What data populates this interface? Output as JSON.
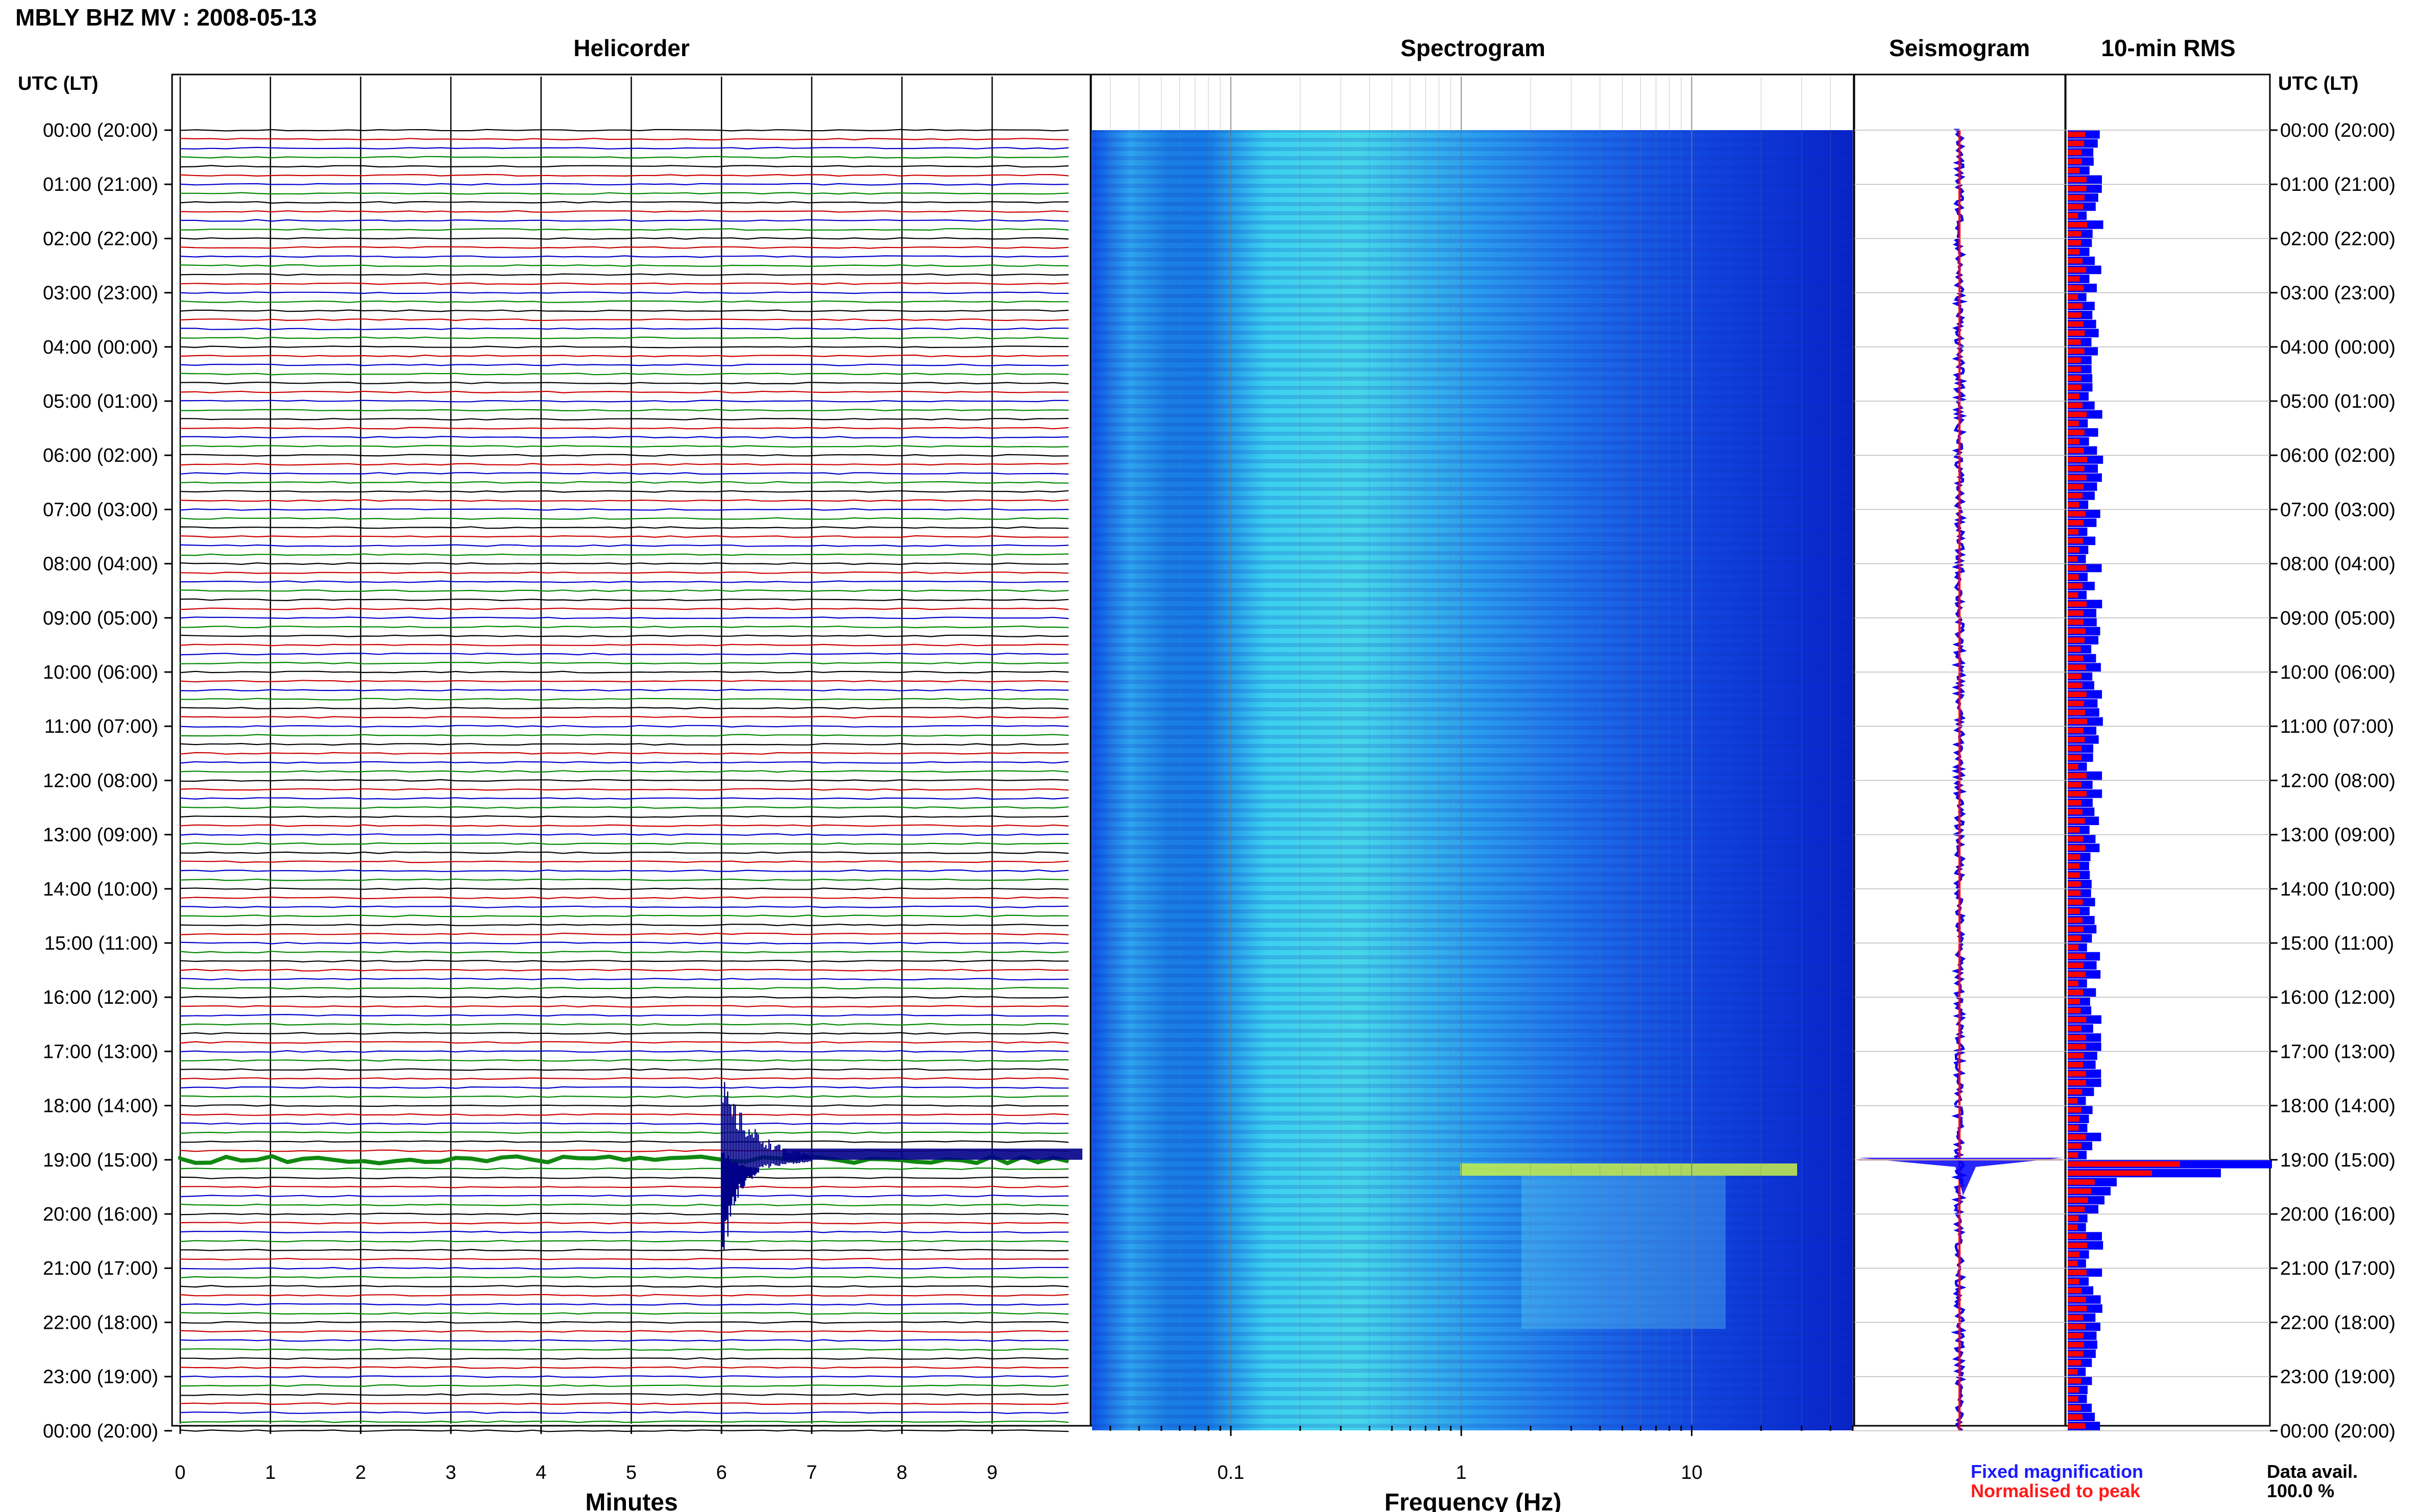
{
  "station_title": "MBLY BHZ MV : 2008-05-13",
  "panels": {
    "helicorder": "Helicorder",
    "spectrogram": "Spectrogram",
    "seismogram": "Seismogram",
    "rms": "10-min RMS"
  },
  "axis_header_left": "UTC (LT)",
  "axis_header_right": "UTC (LT)",
  "time_labels": [
    "00:00 (20:00)",
    "01:00 (21:00)",
    "02:00 (22:00)",
    "03:00 (23:00)",
    "04:00 (00:00)",
    "05:00 (01:00)",
    "06:00 (02:00)",
    "07:00 (03:00)",
    "08:00 (04:00)",
    "09:00 (05:00)",
    "10:00 (06:00)",
    "11:00 (07:00)",
    "12:00 (08:00)",
    "13:00 (09:00)",
    "14:00 (10:00)",
    "15:00 (11:00)",
    "16:00 (12:00)",
    "17:00 (13:00)",
    "18:00 (14:00)",
    "19:00 (15:00)",
    "20:00 (16:00)",
    "21:00 (17:00)",
    "22:00 (18:00)",
    "23:00 (19:00)",
    "00:00 (20:00)"
  ],
  "minutes_ticks": [
    "0",
    "1",
    "2",
    "3",
    "4",
    "5",
    "6",
    "7",
    "8",
    "9"
  ],
  "minutes_label": "Minutes",
  "freq_ticks": [
    "0.1",
    "1",
    "10"
  ],
  "freq_label": "Frequency (Hz)",
  "legend": {
    "fixed": "Fixed magnification",
    "normalised": "Normalised to peak",
    "fixed_color": "#1a1aff",
    "normalised_color": "#ff1a1a"
  },
  "data_avail_label": "Data avail.",
  "data_avail_value": "100.0 %",
  "colors": {
    "trace_cycle": [
      "#000000",
      "#cc0000",
      "#0000cc",
      "#008800"
    ],
    "event_trace": "#000088",
    "spectrogram_low": "#0a2bd8",
    "spectrogram_mid": "#33c8f0",
    "rms_blue": "#0000ff",
    "rms_red": "#ff0000"
  },
  "chart_data": {
    "type": "heatmap",
    "helicorder": {
      "line_minutes": 10,
      "lines_per_hour": 6,
      "x_range_minutes": [
        0,
        10
      ],
      "major_event": {
        "utc": "19:00",
        "start_minute": 6.0
      },
      "ticks_minutes": [
        0,
        1,
        2,
        3,
        4,
        5,
        6,
        7,
        8,
        9
      ]
    },
    "spectrogram": {
      "x_scale": "log",
      "x_range_hz": [
        0.025,
        50
      ],
      "x_ticks_hz": [
        0.1,
        1,
        10
      ],
      "event_band_hz": [
        1,
        15
      ],
      "event_utc": "19:00"
    },
    "rms": {
      "interval_minutes": 10,
      "peak_utc": "19:00"
    },
    "data_availability_percent": 100.0
  }
}
